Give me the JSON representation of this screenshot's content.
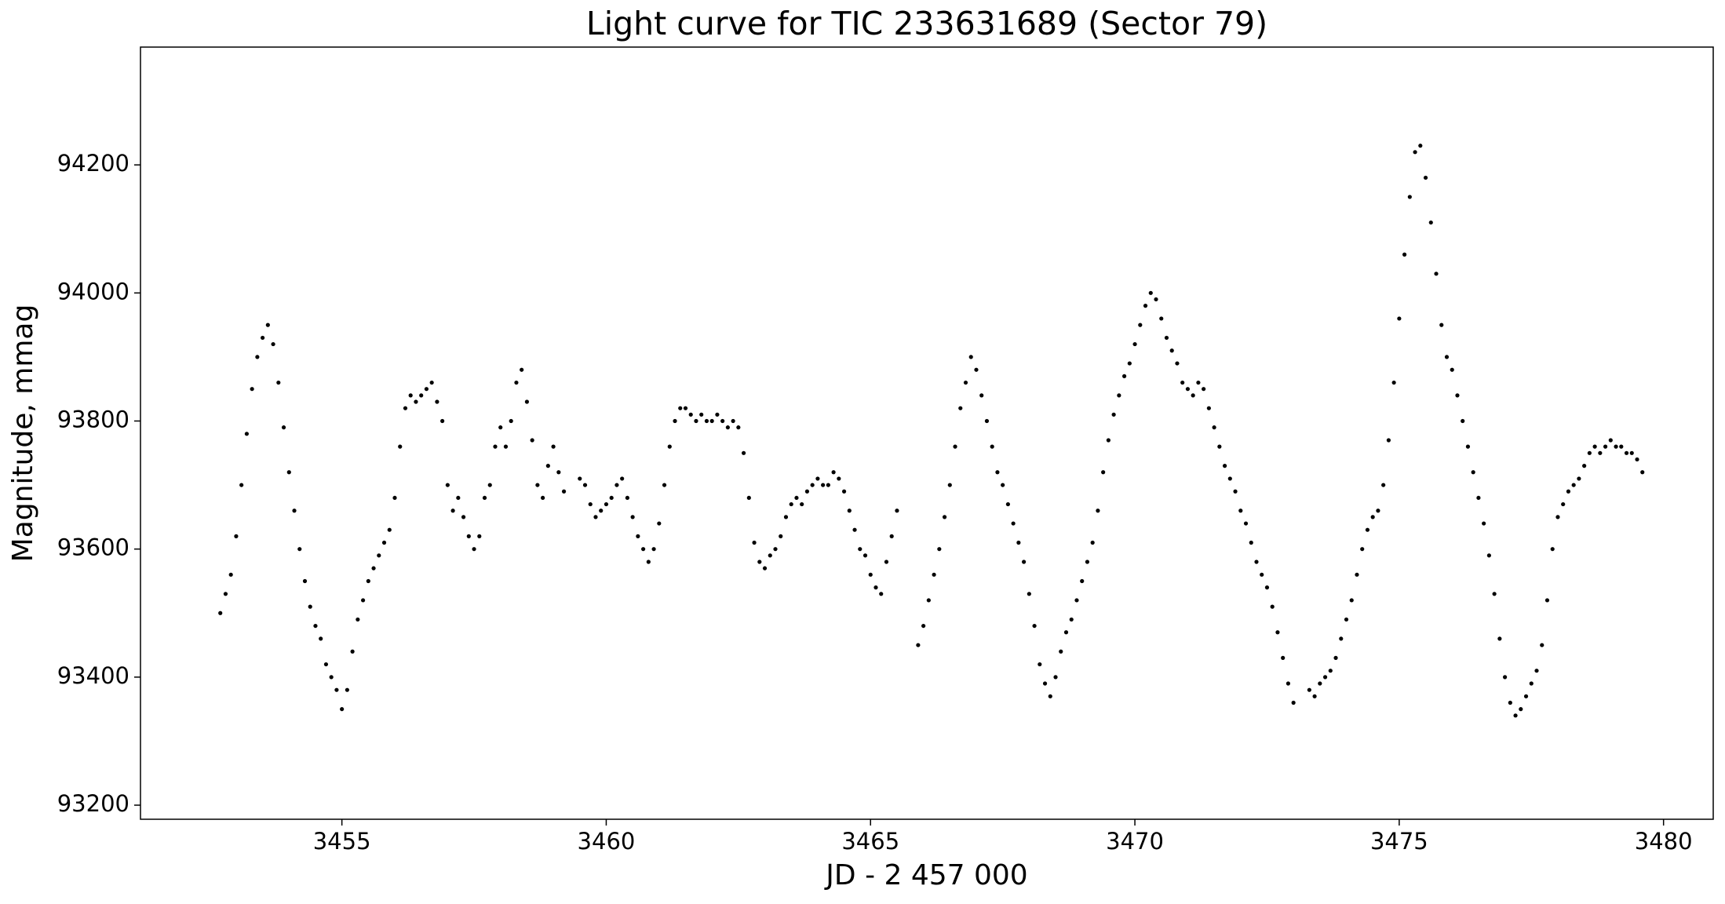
{
  "chart_data": {
    "type": "scatter",
    "title": "Light curve for TIC 233631689 (Sector 79)",
    "x_label": "JD - 2 457 000",
    "y_label": "Magnitude, mmag",
    "color": "#000000",
    "xlim": [
      3451.19,
      3480.94
    ],
    "ylim": [
      93178,
      94384
    ],
    "xticks": [
      3455,
      3460,
      3465,
      3470,
      3475,
      3480
    ],
    "yticks": [
      93200,
      93400,
      93600,
      93800,
      94000,
      94200
    ],
    "x": [
      3452.7,
      3452.8,
      3452.9,
      3453.0,
      3453.1,
      3453.2,
      3453.3,
      3453.4,
      3453.5,
      3453.6,
      3453.7,
      3453.8,
      3453.9,
      3454.0,
      3454.1,
      3454.2,
      3454.3,
      3454.4,
      3454.5,
      3454.6,
      3454.7,
      3454.8,
      3454.9,
      3455.0,
      3455.1,
      3455.2,
      3455.3,
      3455.4,
      3455.5,
      3455.6,
      3455.7,
      3455.8,
      3455.9,
      3456.0,
      3456.1,
      3456.2,
      3456.3,
      3456.4,
      3456.5,
      3456.6,
      3456.7,
      3456.8,
      3456.9,
      3457.0,
      3457.1,
      3457.2,
      3457.3,
      3457.4,
      3457.5,
      3457.6,
      3457.7,
      3457.8,
      3457.9,
      3458.0,
      3458.1,
      3458.2,
      3458.3,
      3458.4,
      3458.5,
      3458.6,
      3458.7,
      3458.8,
      3458.9,
      3459.0,
      3459.1,
      3459.2,
      3459.5,
      3459.6,
      3459.7,
      3459.8,
      3459.9,
      3460.0,
      3460.1,
      3460.2,
      3460.3,
      3460.4,
      3460.5,
      3460.6,
      3460.7,
      3460.8,
      3460.9,
      3461.0,
      3461.1,
      3461.2,
      3461.3,
      3461.4,
      3461.5,
      3461.6,
      3461.7,
      3461.8,
      3461.9,
      3462.0,
      3462.1,
      3462.2,
      3462.3,
      3462.4,
      3462.5,
      3462.6,
      3462.7,
      3462.8,
      3462.9,
      3463.0,
      3463.1,
      3463.2,
      3463.3,
      3463.4,
      3463.5,
      3463.6,
      3463.7,
      3463.8,
      3463.9,
      3464.0,
      3464.1,
      3464.2,
      3464.3,
      3464.4,
      3464.5,
      3464.6,
      3464.7,
      3464.8,
      3464.9,
      3465.0,
      3465.1,
      3465.2,
      3465.3,
      3465.4,
      3465.5,
      3465.9,
      3466.0,
      3466.1,
      3466.2,
      3466.3,
      3466.4,
      3466.5,
      3466.6,
      3466.7,
      3466.8,
      3466.9,
      3467.0,
      3467.1,
      3467.2,
      3467.3,
      3467.4,
      3467.5,
      3467.6,
      3467.7,
      3467.8,
      3467.9,
      3468.0,
      3468.1,
      3468.2,
      3468.3,
      3468.4,
      3468.5,
      3468.6,
      3468.7,
      3468.8,
      3468.9,
      3469.0,
      3469.1,
      3469.2,
      3469.3,
      3469.4,
      3469.5,
      3469.6,
      3469.7,
      3469.8,
      3469.9,
      3470.0,
      3470.1,
      3470.2,
      3470.3,
      3470.4,
      3470.5,
      3470.6,
      3470.7,
      3470.8,
      3470.9,
      3471.0,
      3471.1,
      3471.2,
      3471.3,
      3471.4,
      3471.5,
      3471.6,
      3471.7,
      3471.8,
      3471.9,
      3472.0,
      3472.1,
      3472.2,
      3472.3,
      3472.4,
      3472.5,
      3472.6,
      3472.7,
      3472.8,
      3472.9,
      3473.0,
      3473.3,
      3473.4,
      3473.5,
      3473.6,
      3473.7,
      3473.8,
      3473.9,
      3474.0,
      3474.1,
      3474.2,
      3474.3,
      3474.4,
      3474.5,
      3474.6,
      3474.7,
      3474.8,
      3474.9,
      3475.0,
      3475.1,
      3475.2,
      3475.3,
      3475.4,
      3475.5,
      3475.6,
      3475.7,
      3475.8,
      3475.9,
      3476.0,
      3476.1,
      3476.2,
      3476.3,
      3476.4,
      3476.5,
      3476.6,
      3476.7,
      3476.8,
      3476.9,
      3477.0,
      3477.1,
      3477.2,
      3477.3,
      3477.4,
      3477.5,
      3477.6,
      3477.7,
      3477.8,
      3477.9,
      3478.0,
      3478.1,
      3478.2,
      3478.3,
      3478.4,
      3478.5,
      3478.6,
      3478.7,
      3478.8,
      3478.9,
      3479.0,
      3479.1,
      3479.2,
      3479.3,
      3479.4,
      3479.5,
      3479.6
    ],
    "values": [
      93500,
      93530,
      93560,
      93620,
      93700,
      93780,
      93850,
      93900,
      93930,
      93950,
      93920,
      93860,
      93790,
      93720,
      93660,
      93600,
      93550,
      93510,
      93480,
      93460,
      93420,
      93400,
      93380,
      93350,
      93380,
      93440,
      93490,
      93520,
      93550,
      93570,
      93590,
      93610,
      93630,
      93680,
      93760,
      93820,
      93840,
      93830,
      93840,
      93850,
      93860,
      93830,
      93800,
      93700,
      93660,
      93680,
      93650,
      93620,
      93600,
      93620,
      93680,
      93700,
      93760,
      93790,
      93760,
      93800,
      93860,
      93880,
      93830,
      93770,
      93700,
      93680,
      93730,
      93760,
      93720,
      93690,
      93710,
      93700,
      93670,
      93650,
      93660,
      93670,
      93680,
      93700,
      93710,
      93680,
      93650,
      93620,
      93600,
      93580,
      93600,
      93640,
      93700,
      93760,
      93800,
      93820,
      93820,
      93810,
      93800,
      93810,
      93800,
      93800,
      93810,
      93800,
      93790,
      93800,
      93790,
      93750,
      93680,
      93610,
      93580,
      93570,
      93590,
      93600,
      93620,
      93650,
      93670,
      93680,
      93670,
      93690,
      93700,
      93710,
      93700,
      93700,
      93720,
      93710,
      93690,
      93660,
      93630,
      93600,
      93590,
      93560,
      93540,
      93530,
      93580,
      93620,
      93660,
      93450,
      93480,
      93520,
      93560,
      93600,
      93650,
      93700,
      93760,
      93820,
      93860,
      93900,
      93880,
      93840,
      93800,
      93760,
      93720,
      93700,
      93670,
      93640,
      93610,
      93580,
      93530,
      93480,
      93420,
      93390,
      93370,
      93400,
      93440,
      93470,
      93490,
      93520,
      93550,
      93580,
      93610,
      93660,
      93720,
      93770,
      93810,
      93840,
      93870,
      93890,
      93920,
      93950,
      93980,
      94000,
      93990,
      93960,
      93930,
      93910,
      93890,
      93860,
      93850,
      93840,
      93860,
      93850,
      93820,
      93790,
      93760,
      93730,
      93710,
      93690,
      93660,
      93640,
      93610,
      93580,
      93560,
      93540,
      93510,
      93470,
      93430,
      93390,
      93360,
      93380,
      93370,
      93390,
      93400,
      93410,
      93430,
      93460,
      93490,
      93520,
      93560,
      93600,
      93630,
      93650,
      93660,
      93700,
      93770,
      93860,
      93960,
      94060,
      94150,
      94220,
      94230,
      94180,
      94110,
      94030,
      93950,
      93900,
      93880,
      93840,
      93800,
      93760,
      93720,
      93680,
      93640,
      93590,
      93530,
      93460,
      93400,
      93360,
      93340,
      93350,
      93370,
      93390,
      93410,
      93450,
      93520,
      93600,
      93650,
      93670,
      93690,
      93700,
      93710,
      93730,
      93750,
      93760,
      93750,
      93760,
      93770,
      93760,
      93760,
      93750,
      93750,
      93740,
      93720
    ]
  }
}
